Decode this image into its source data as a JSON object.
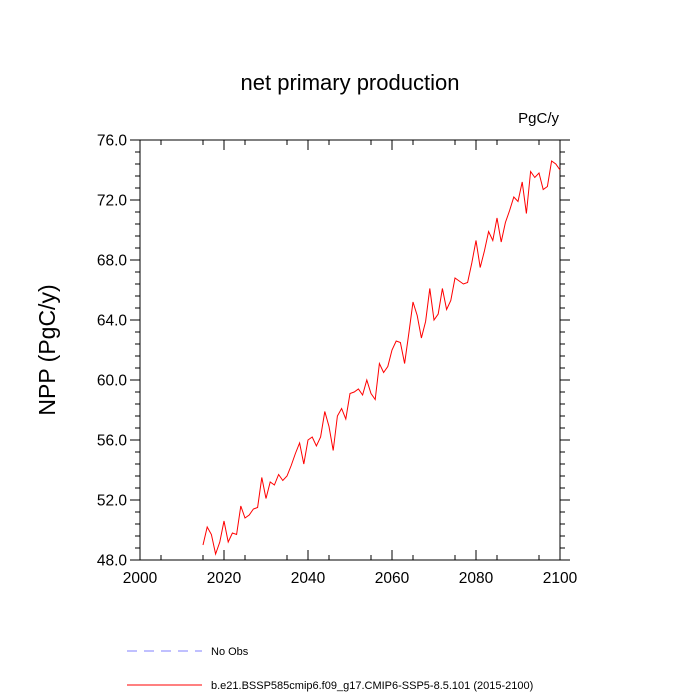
{
  "chart_data": {
    "type": "line",
    "title": "net primary production",
    "units": "PgC/y",
    "xlabel": "",
    "ylabel": "NPP  (PgC/y)",
    "xlim": [
      2000,
      2100
    ],
    "ylim": [
      48.0,
      76.0
    ],
    "xticks": [
      2000,
      2020,
      2040,
      2060,
      2080,
      2100
    ],
    "xtick_labels": [
      "2000",
      "2020",
      "2040",
      "2060",
      "2080",
      "2100"
    ],
    "yticks": [
      48.0,
      52.0,
      56.0,
      60.0,
      64.0,
      68.0,
      72.0,
      76.0
    ],
    "ytick_labels": [
      "48.0",
      "52.0",
      "56.0",
      "60.0",
      "64.0",
      "68.0",
      "72.0",
      "76.0"
    ],
    "series": [
      {
        "name": "b.e21.BSSP585cmip6.f09_g17.CMIP6-SSP5-8.5.101 (2015-2100)",
        "color": "#ff0000",
        "x": [
          2015,
          2016,
          2017,
          2018,
          2019,
          2020,
          2021,
          2022,
          2023,
          2024,
          2025,
          2026,
          2027,
          2028,
          2029,
          2030,
          2031,
          2032,
          2033,
          2034,
          2035,
          2036,
          2037,
          2038,
          2039,
          2040,
          2041,
          2042,
          2043,
          2044,
          2045,
          2046,
          2047,
          2048,
          2049,
          2050,
          2051,
          2052,
          2053,
          2054,
          2055,
          2056,
          2057,
          2058,
          2059,
          2060,
          2061,
          2062,
          2063,
          2064,
          2065,
          2066,
          2067,
          2068,
          2069,
          2070,
          2071,
          2072,
          2073,
          2074,
          2075,
          2076,
          2077,
          2078,
          2079,
          2080,
          2081,
          2082,
          2083,
          2084,
          2085,
          2086,
          2087,
          2088,
          2089,
          2090,
          2091,
          2092,
          2093,
          2094,
          2095,
          2096,
          2097,
          2098,
          2099,
          2100
        ],
        "values": [
          49.0,
          50.2,
          49.7,
          48.4,
          49.2,
          50.6,
          49.2,
          49.8,
          49.7,
          51.6,
          50.8,
          51.0,
          51.4,
          51.5,
          53.5,
          52.1,
          53.2,
          53.0,
          53.7,
          53.3,
          53.6,
          54.3,
          55.1,
          55.8,
          54.4,
          56.0,
          56.2,
          55.6,
          56.2,
          57.9,
          56.9,
          55.3,
          57.6,
          58.1,
          57.4,
          59.1,
          59.2,
          59.4,
          59.0,
          60.0,
          59.1,
          58.7,
          61.1,
          60.5,
          60.9,
          62.0,
          62.6,
          62.5,
          61.1,
          63.1,
          65.2,
          64.3,
          62.8,
          63.9,
          66.1,
          64.0,
          64.4,
          66.1,
          64.7,
          65.3,
          66.8,
          66.6,
          66.4,
          66.5,
          67.8,
          69.3,
          67.5,
          68.6,
          69.9,
          69.3,
          70.8,
          69.2,
          70.5,
          71.3,
          72.2,
          71.9,
          73.2,
          71.1,
          73.9,
          73.5,
          73.8,
          72.7,
          72.9,
          74.6,
          74.4,
          74.0
        ]
      }
    ],
    "legend": [
      {
        "label": "No Obs",
        "color": "#8080ff",
        "style": "dashed"
      },
      {
        "label": "b.e21.BSSP585cmip6.f09_g17.CMIP6-SSP5-8.5.101 (2015-2100)",
        "color": "#ff0000",
        "style": "solid"
      }
    ]
  }
}
